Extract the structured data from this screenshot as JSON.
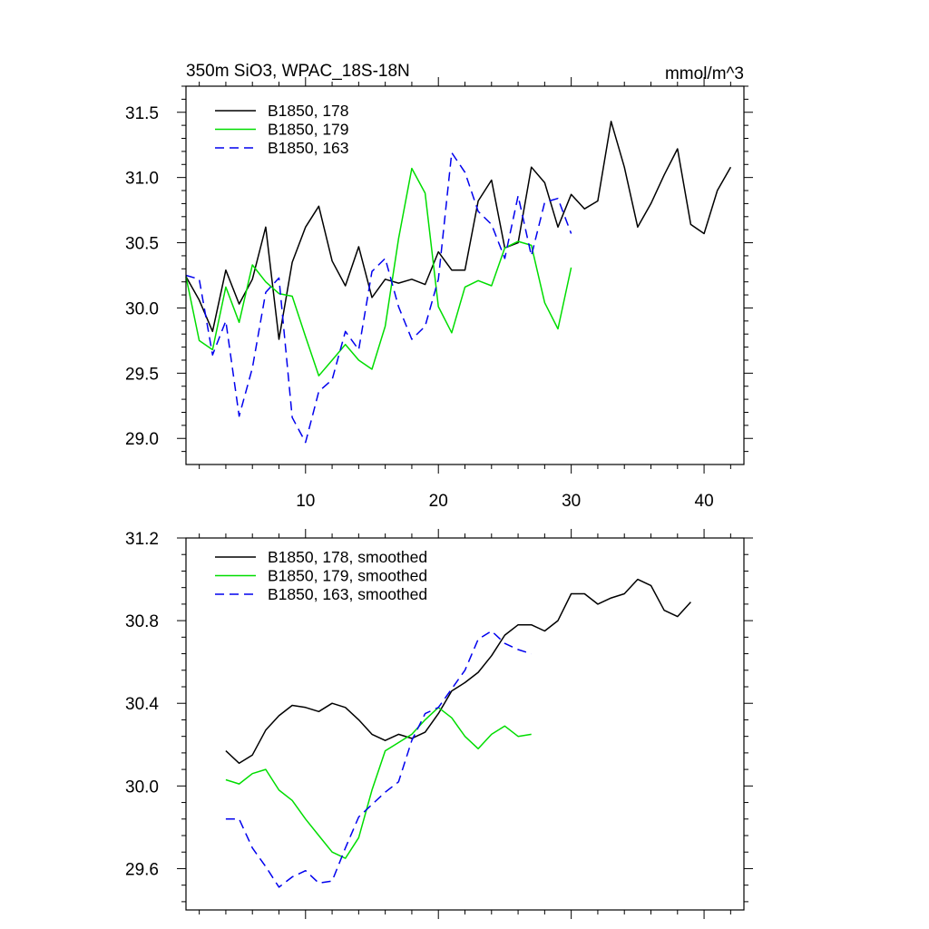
{
  "chart_data": [
    {
      "type": "line",
      "title": "350m SiO3, WPAC_18S-18N",
      "units": "mmol/m^3",
      "xlabel": "",
      "ylabel": "",
      "xlim": [
        1,
        43
      ],
      "ylim": [
        28.8,
        31.7
      ],
      "x_ticks": [
        10,
        20,
        30,
        40
      ],
      "x_tick_labels": [
        "10",
        "20",
        "30",
        "40"
      ],
      "y_ticks": [
        29.0,
        29.5,
        30.0,
        30.5,
        31.0,
        31.5
      ],
      "y_tick_labels": [
        "29.0",
        "29.5",
        "30.0",
        "30.5",
        "31.0",
        "31.5"
      ],
      "legend_position": "top-left",
      "grid": false,
      "series": [
        {
          "name": "B1850, 178",
          "color": "#000000",
          "dash": "solid",
          "x": [
            1,
            2,
            3,
            4,
            5,
            6,
            7,
            8,
            9,
            10,
            11,
            12,
            13,
            14,
            15,
            16,
            17,
            18,
            19,
            20,
            21,
            22,
            23,
            24,
            25,
            26,
            27,
            28,
            29,
            30,
            31,
            32,
            33,
            34,
            35,
            36,
            37,
            38,
            39,
            40,
            41,
            42
          ],
          "values": [
            30.24,
            30.06,
            29.82,
            30.29,
            30.03,
            30.22,
            30.62,
            29.76,
            30.35,
            30.62,
            30.78,
            30.36,
            30.17,
            30.47,
            30.08,
            30.22,
            30.19,
            30.22,
            30.18,
            30.43,
            30.29,
            30.29,
            30.82,
            30.98,
            30.46,
            30.5,
            31.08,
            30.96,
            30.62,
            30.87,
            30.76,
            30.82,
            31.43,
            31.08,
            30.62,
            30.8,
            31.02,
            31.22,
            30.64,
            30.57,
            30.9,
            31.08
          ]
        },
        {
          "name": "B1850, 179",
          "color": "#00dd00",
          "dash": "solid",
          "x": [
            1,
            2,
            3,
            4,
            5,
            6,
            7,
            8,
            9,
            10,
            11,
            12,
            13,
            14,
            15,
            16,
            17,
            18,
            19,
            20,
            21,
            22,
            23,
            24,
            25,
            26,
            27,
            28,
            29,
            30
          ],
          "values": [
            30.24,
            29.75,
            29.68,
            30.16,
            29.89,
            30.33,
            30.2,
            30.11,
            30.09,
            29.78,
            29.48,
            29.6,
            29.72,
            29.6,
            29.53,
            29.86,
            30.53,
            31.07,
            30.88,
            30.01,
            29.81,
            30.16,
            30.21,
            30.17,
            30.46,
            30.51,
            30.48,
            30.04,
            29.84,
            30.31
          ]
        },
        {
          "name": "B1850, 163",
          "color": "#0000ee",
          "dash": "dashed",
          "x": [
            1,
            2,
            3,
            4,
            5,
            6,
            7,
            8,
            9,
            10,
            11,
            12,
            13,
            14,
            15,
            16,
            17,
            18,
            19,
            20,
            21,
            22,
            23,
            24,
            25,
            26,
            27,
            28,
            29,
            30
          ],
          "values": [
            30.25,
            30.22,
            29.64,
            29.9,
            29.17,
            29.54,
            30.12,
            30.23,
            29.16,
            28.97,
            29.36,
            29.45,
            29.82,
            29.68,
            30.28,
            30.38,
            30.01,
            29.76,
            29.86,
            30.22,
            31.19,
            31.04,
            30.74,
            30.64,
            30.38,
            30.86,
            30.4,
            30.81,
            30.84,
            30.57
          ]
        }
      ]
    },
    {
      "type": "line",
      "title": "",
      "units": "",
      "xlabel": "",
      "ylabel": "",
      "xlim": [
        1,
        43
      ],
      "ylim": [
        29.4,
        31.2
      ],
      "x_ticks": [
        10,
        20,
        30,
        40
      ],
      "x_tick_labels": [],
      "y_ticks": [
        29.6,
        30.0,
        30.4,
        30.8,
        31.2
      ],
      "y_tick_labels": [
        "29.6",
        "30.0",
        "30.4",
        "30.8",
        "31.2"
      ],
      "legend_position": "top-left",
      "grid": false,
      "series": [
        {
          "name": "B1850, 178, smoothed",
          "color": "#000000",
          "dash": "solid",
          "x": [
            4,
            5,
            6,
            7,
            8,
            9,
            10,
            11,
            12,
            13,
            14,
            15,
            16,
            17,
            18,
            19,
            20,
            21,
            22,
            23,
            24,
            25,
            26,
            27,
            28,
            29,
            30,
            31,
            32,
            33,
            34,
            35,
            36,
            37,
            38,
            39
          ],
          "values": [
            30.17,
            30.11,
            30.15,
            30.27,
            30.34,
            30.39,
            30.38,
            30.36,
            30.4,
            30.38,
            30.32,
            30.25,
            30.22,
            30.25,
            30.23,
            30.26,
            30.35,
            30.46,
            30.5,
            30.55,
            30.63,
            30.73,
            30.78,
            30.78,
            30.75,
            30.8,
            30.93,
            30.93,
            30.88,
            30.91,
            30.93,
            31.0,
            30.97,
            30.85,
            30.82,
            30.89
          ]
        },
        {
          "name": "B1850, 179, smoothed",
          "color": "#00dd00",
          "dash": "solid",
          "x": [
            4,
            5,
            6,
            7,
            8,
            9,
            10,
            11,
            12,
            13,
            14,
            15,
            16,
            17,
            18,
            19,
            20,
            21,
            22,
            23,
            24,
            25,
            26,
            27
          ],
          "values": [
            30.03,
            30.01,
            30.06,
            30.08,
            29.98,
            29.93,
            29.84,
            29.76,
            29.68,
            29.65,
            29.75,
            29.98,
            30.17,
            30.21,
            30.25,
            30.32,
            30.38,
            30.33,
            30.24,
            30.18,
            30.25,
            30.29,
            30.24,
            30.25
          ]
        },
        {
          "name": "B1850, 163, smoothed",
          "color": "#0000ee",
          "dash": "dashed",
          "x": [
            4,
            5,
            6,
            7,
            8,
            9,
            10,
            11,
            12,
            13,
            14,
            15,
            16,
            17,
            18,
            19,
            20,
            21,
            22,
            23,
            24,
            25,
            26,
            27
          ],
          "values": [
            29.84,
            29.84,
            29.7,
            29.61,
            29.51,
            29.56,
            29.59,
            29.53,
            29.54,
            29.7,
            29.85,
            29.91,
            29.97,
            30.02,
            30.22,
            30.35,
            30.38,
            30.47,
            30.56,
            30.71,
            30.75,
            30.69,
            30.66,
            30.64
          ]
        }
      ]
    }
  ]
}
